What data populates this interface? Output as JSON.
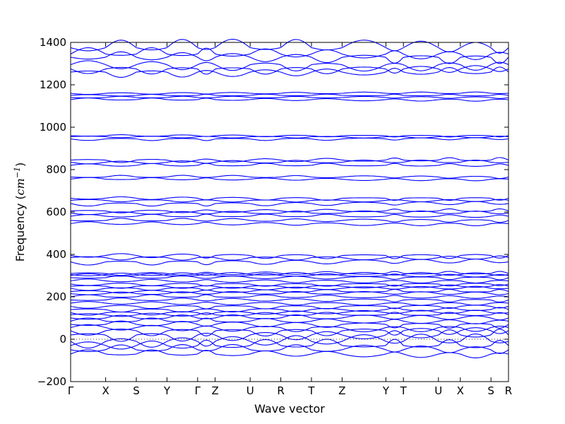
{
  "chart_data": {
    "type": "line",
    "title": "",
    "xlabel": "Wave vector",
    "ylabel": "Frequency (cm⁻¹)",
    "ylabel_main": "Frequency (",
    "ylabel_unit": "cm",
    "ylabel_exp": "−1",
    "ylabel_close": ")",
    "ylim": [
      -200,
      1400
    ],
    "yticks": [
      -200,
      0,
      200,
      400,
      600,
      800,
      1000,
      1200,
      1400
    ],
    "ytick_labels": [
      "−200",
      "0",
      "200",
      "400",
      "600",
      "800",
      "1000",
      "1200",
      "1400"
    ],
    "xlim": [
      0,
      10
    ],
    "xticks": [
      {
        "label": "Γ",
        "x": 0.0
      },
      {
        "label": "X",
        "x": 0.8
      },
      {
        "label": "S",
        "x": 1.5
      },
      {
        "label": "Y",
        "x": 2.2
      },
      {
        "label": "Γ",
        "x": 2.9
      },
      {
        "label": "Z",
        "x": 3.3
      },
      {
        "label": "U",
        "x": 4.1
      },
      {
        "label": "R",
        "x": 4.8
      },
      {
        "label": "T",
        "x": 5.5
      },
      {
        "label": "Z",
        "x": 6.2
      },
      {
        "label": "Y",
        "x": 7.2
      },
      {
        "label": "T",
        "x": 7.6
      },
      {
        "label": "U",
        "x": 8.4
      },
      {
        "label": "X",
        "x": 8.9
      },
      {
        "label": "S",
        "x": 9.6
      },
      {
        "label": "R",
        "x": 10.0
      }
    ],
    "zero_line": {
      "y": 0,
      "style": "dotted"
    },
    "series_color": "#0000ff",
    "band_levels": [
      -70,
      -50,
      -30,
      -10,
      20,
      40,
      55,
      70,
      85,
      100,
      115,
      125,
      140,
      155,
      170,
      185,
      200,
      215,
      225,
      240,
      250,
      260,
      275,
      290,
      300,
      305,
      310,
      365,
      385,
      395,
      545,
      560,
      580,
      595,
      605,
      640,
      655,
      665,
      755,
      765,
      820,
      835,
      845,
      945,
      955,
      960,
      1130,
      1140,
      1150,
      1160,
      1260,
      1275,
      1295,
      1330,
      1345,
      1375
    ],
    "band_amplitudes": [
      20,
      25,
      30,
      35,
      30,
      25,
      20,
      18,
      15,
      15,
      12,
      12,
      12,
      12,
      10,
      10,
      10,
      10,
      10,
      10,
      10,
      10,
      10,
      10,
      10,
      10,
      10,
      15,
      12,
      15,
      10,
      10,
      10,
      10,
      10,
      12,
      8,
      10,
      8,
      8,
      10,
      10,
      12,
      8,
      6,
      6,
      8,
      6,
      6,
      6,
      25,
      25,
      30,
      30,
      30,
      40
    ]
  }
}
